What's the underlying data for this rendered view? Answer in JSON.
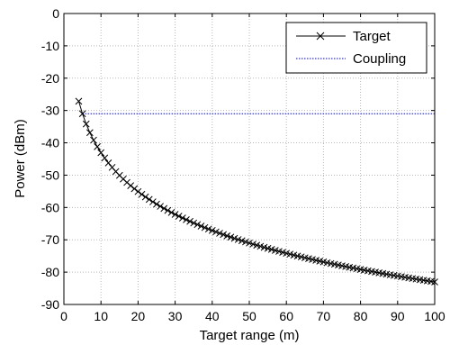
{
  "chart_data": {
    "type": "line",
    "title": "",
    "xlabel": "Target range (m)",
    "ylabel": "Power (dBm)",
    "xlim": [
      0,
      100
    ],
    "ylim": [
      -90,
      0
    ],
    "xticks": [
      0,
      10,
      20,
      30,
      40,
      50,
      60,
      70,
      80,
      90,
      100
    ],
    "yticks": [
      0,
      -10,
      -20,
      -30,
      -40,
      -50,
      -60,
      -70,
      -80,
      -90
    ],
    "grid": true,
    "legend_position": "top-right",
    "series": [
      {
        "name": "Target",
        "color": "#000000",
        "marker": "x",
        "style": "solid",
        "model": "P = -31 - 40*log10(R/5)",
        "x_start": 4,
        "x_end": 100,
        "x_step": 1
      },
      {
        "name": "Coupling",
        "color": "#0000cc",
        "marker": "none",
        "style": "dotted",
        "x": [
          5,
          100
        ],
        "y": [
          -31,
          -31
        ]
      }
    ]
  }
}
